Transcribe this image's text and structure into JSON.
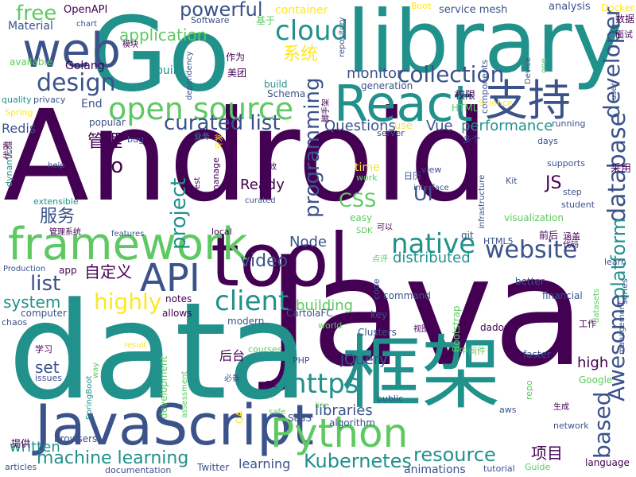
{
  "background": "#ffffff",
  "palette": [
    "#440154",
    "#3b528b",
    "#21918c",
    "#5ec962",
    "#fde725"
  ],
  "words": [
    {
      "text": "Android",
      "color": "#440154"
    },
    {
      "text": "Java",
      "color": "#440154"
    },
    {
      "text": "data",
      "color": "#21918c"
    },
    {
      "text": "框架",
      "color": "#21918c"
    },
    {
      "text": "library",
      "color": "#21918c"
    },
    {
      "text": "Go",
      "color": "#21918c"
    },
    {
      "text": "tool",
      "color": "#440154"
    },
    {
      "text": "JavaScript",
      "color": "#3b528b"
    },
    {
      "text": "React",
      "color": "#21918c"
    },
    {
      "text": "framework",
      "color": "#5ec962"
    },
    {
      "text": "web",
      "color": "#3b528b"
    },
    {
      "text": "Python",
      "color": "#5ec962"
    },
    {
      "text": "open source",
      "color": "#5ec962"
    },
    {
      "text": "支持",
      "color": "#3b528b"
    },
    {
      "text": "API",
      "color": "#3b528b"
    },
    {
      "text": "cloud",
      "color": "#21918c"
    },
    {
      "text": "database",
      "color": "#3b528b"
    },
    {
      "text": "design",
      "color": "#3b528b"
    },
    {
      "text": "collection",
      "color": "#3b528b"
    },
    {
      "text": "curated list",
      "color": "#3b528b"
    },
    {
      "text": "website",
      "color": "#3b528b"
    },
    {
      "text": "native",
      "color": "#21918c"
    },
    {
      "text": "client",
      "color": "#21918c"
    },
    {
      "text": "https",
      "color": "#21918c"
    },
    {
      "text": "powerful",
      "color": "#3b528b"
    },
    {
      "text": "developer",
      "color": "#3b528b"
    },
    {
      "text": "platform",
      "color": "#21918c"
    },
    {
      "text": "programming",
      "color": "#3b528b"
    },
    {
      "text": "based",
      "color": "#3b528b"
    },
    {
      "text": "Awesome",
      "color": "#3b528b"
    },
    {
      "text": "resource",
      "color": "#21918c"
    },
    {
      "text": "machine learning",
      "color": "#21918c"
    },
    {
      "text": "Kubernetes",
      "color": "#21918c"
    },
    {
      "text": "highly",
      "color": "#fde725"
    },
    {
      "text": "project",
      "color": "#21918c"
    },
    {
      "text": "video",
      "color": "#3b528b"
    },
    {
      "text": "list",
      "color": "#3b528b"
    },
    {
      "text": "free",
      "color": "#5ec962"
    },
    {
      "text": "系统",
      "color": "#fde725"
    },
    {
      "text": "application",
      "color": "#5ec962"
    },
    {
      "text": "io",
      "color": "#440154"
    },
    {
      "text": "CSS",
      "color": "#5ec962"
    },
    {
      "text": "UI",
      "color": "#3b528b"
    },
    {
      "text": "JS",
      "color": "#440154"
    },
    {
      "text": "服务",
      "color": "#3b528b"
    },
    {
      "text": "管理",
      "color": "#440154"
    },
    {
      "text": "自定义",
      "color": "#440154"
    },
    {
      "text": "项目",
      "color": "#440154"
    },
    {
      "text": "system",
      "color": "#21918c"
    },
    {
      "text": "set",
      "color": "#3b528b"
    },
    {
      "text": "written",
      "color": "#21918c"
    },
    {
      "text": "performance",
      "color": "#21918c"
    },
    {
      "text": "Vue",
      "color": "#3b528b"
    },
    {
      "text": "Questions",
      "color": "#3b528b"
    },
    {
      "text": "monitor",
      "color": "#3b528b"
    },
    {
      "text": "distributed",
      "color": "#21918c"
    },
    {
      "text": "Node",
      "color": "#3b528b"
    },
    {
      "text": "Ready",
      "color": "#440154"
    },
    {
      "text": "building",
      "color": "#5ec962"
    },
    {
      "text": "jQuery",
      "color": "#3b528b"
    },
    {
      "text": "libraries",
      "color": "#3b528b"
    },
    {
      "text": "learning",
      "color": "#3b528b"
    },
    {
      "text": "animations",
      "color": "#3b528b"
    },
    {
      "text": "high",
      "color": "#440154"
    },
    {
      "text": "后台",
      "color": "#440154"
    },
    {
      "text": "基于",
      "color": "#5ec962"
    },
    {
      "text": "Material",
      "color": "#3b528b"
    },
    {
      "text": "Golang",
      "color": "#440154"
    },
    {
      "text": "OpenAPI",
      "color": "#440154"
    },
    {
      "text": "container",
      "color": "#fde725"
    },
    {
      "text": "service mesh",
      "color": "#3b528b"
    },
    {
      "text": "analysis",
      "color": "#3b528b"
    },
    {
      "text": "Boot",
      "color": "#fde725"
    },
    {
      "text": "Docker",
      "color": "#fde725"
    },
    {
      "text": "数据",
      "color": "#440154"
    },
    {
      "text": "面试",
      "color": "#440154"
    },
    {
      "text": "Redis",
      "color": "#3b528b"
    },
    {
      "text": "End",
      "color": "#3b528b"
    },
    {
      "text": "popular",
      "color": "#3b528b"
    },
    {
      "text": "chaos",
      "color": "#3b528b"
    },
    {
      "text": "computer",
      "color": "#3b528b"
    },
    {
      "text": "allows",
      "color": "#440154"
    },
    {
      "text": "notes",
      "color": "#440154"
    },
    {
      "text": "modern",
      "color": "#3b528b"
    },
    {
      "text": "CartolaFC",
      "color": "#3b528b"
    },
    {
      "text": "world",
      "color": "#5ec962"
    },
    {
      "text": "key",
      "color": "#3b528b"
    },
    {
      "text": "command",
      "color": "#3b528b"
    },
    {
      "text": "financial",
      "color": "#3b528b"
    },
    {
      "text": "better",
      "color": "#3b528b"
    },
    {
      "text": "faster",
      "color": "#3b528b"
    },
    {
      "text": "Google",
      "color": "#5ec962"
    },
    {
      "text": "network",
      "color": "#3b528b"
    },
    {
      "text": "language",
      "color": "#440154"
    },
    {
      "text": "Guide",
      "color": "#5ec962"
    },
    {
      "text": "tutorial",
      "color": "#3b528b"
    },
    {
      "text": "Twitter",
      "color": "#3b528b"
    },
    {
      "text": "documentation",
      "color": "#3b528b"
    },
    {
      "text": "articles",
      "color": "#3b528b"
    },
    {
      "text": "提供",
      "color": "#440154"
    },
    {
      "text": "browsers",
      "color": "#3b528b"
    },
    {
      "text": "SaaS",
      "color": "#3b528b"
    },
    {
      "text": "algorithm",
      "color": "#3b528b"
    },
    {
      "text": "public",
      "color": "#3b528b"
    },
    {
      "text": "Clusters",
      "color": "#3b528b"
    },
    {
      "text": "PHP",
      "color": "#3b528b"
    },
    {
      "text": "RL",
      "color": "#440154"
    },
    {
      "text": "必备",
      "color": "#3b528b"
    },
    {
      "text": "学习",
      "color": "#440154"
    },
    {
      "text": "issues",
      "color": "#3b528b"
    },
    {
      "text": "result",
      "color": "#fde725"
    },
    {
      "text": "courses",
      "color": "#5ec962"
    },
    {
      "text": "dados",
      "color": "#440154"
    },
    {
      "text": "视图",
      "color": "#440154"
    },
    {
      "text": "中间件",
      "color": "#5ec962"
    },
    {
      "text": "工作",
      "color": "#440154"
    },
    {
      "text": "生成",
      "color": "#440154"
    },
    {
      "text": "aws",
      "color": "#3b528b"
    },
    {
      "text": "safe",
      "color": "#5ec962"
    },
    {
      "text": "line",
      "color": "#5ec962"
    },
    {
      "text": "Production",
      "color": "#3b528b"
    },
    {
      "text": "app",
      "color": "#440154"
    },
    {
      "text": "local",
      "color": "#440154"
    },
    {
      "text": "features",
      "color": "#3b528b"
    },
    {
      "text": "管理系统",
      "color": "#440154"
    },
    {
      "text": "extensible",
      "color": "#21918c"
    },
    {
      "text": "help",
      "color": "#3b528b"
    },
    {
      "text": "依存",
      "color": "#440154"
    },
    {
      "text": "curated",
      "color": "#3b528b"
    },
    {
      "text": "rest",
      "color": "#440154"
    },
    {
      "text": "高效",
      "color": "#440154"
    },
    {
      "text": "easy",
      "color": "#5ec962"
    },
    {
      "text": "time",
      "color": "#fde725"
    },
    {
      "text": "work",
      "color": "#5ec962"
    },
    {
      "text": "日历",
      "color": "#3b528b"
    },
    {
      "text": "view",
      "color": "#3b528b"
    },
    {
      "text": "SDK",
      "color": "#5ec962"
    },
    {
      "text": "可以",
      "color": "#440154"
    },
    {
      "text": "点评",
      "color": "#5ec962"
    },
    {
      "text": "HTML5",
      "color": "#3b528b"
    },
    {
      "text": "前后",
      "color": "#440154"
    },
    {
      "text": "涵盖",
      "color": "#440154"
    },
    {
      "text": "代码",
      "color": "#440154"
    },
    {
      "text": "learn",
      "color": "#3b528b"
    },
    {
      "text": "采用",
      "color": "#440154"
    },
    {
      "text": "Kit",
      "color": "#3b528b"
    },
    {
      "text": "step",
      "color": "#3b528b"
    },
    {
      "text": "student",
      "color": "#3b528b"
    },
    {
      "text": "supports",
      "color": "#3b528b"
    },
    {
      "text": "days",
      "color": "#3b528b"
    },
    {
      "text": "running",
      "color": "#3b528b"
    },
    {
      "text": "多个",
      "color": "#3b528b"
    },
    {
      "text": "server",
      "color": "#3b528b"
    },
    {
      "text": "use",
      "color": "#fde725"
    },
    {
      "text": "HTML",
      "color": "#5ec962"
    },
    {
      "text": "权限",
      "color": "#440154"
    },
    {
      "text": "generation",
      "color": "#3b528b"
    },
    {
      "text": "build",
      "color": "#21918c"
    },
    {
      "text": "Schema",
      "color": "#3b528b"
    },
    {
      "text": "美团",
      "color": "#440154"
    },
    {
      "text": "作为",
      "color": "#440154"
    },
    {
      "text": "built",
      "color": "#21918c"
    },
    {
      "text": "模块",
      "color": "#440154"
    },
    {
      "text": "Software",
      "color": "#3b528b"
    },
    {
      "text": "chart",
      "color": "#3b528b"
    },
    {
      "text": "available",
      "color": "#5ec962"
    },
    {
      "text": "quality",
      "color": "#21918c"
    },
    {
      "text": "privacy",
      "color": "#3b528b"
    },
    {
      "text": "Spring",
      "color": "#fde725"
    },
    {
      "text": "优雅",
      "color": "#440154"
    },
    {
      "text": "dynamic",
      "color": "#21918c"
    },
    {
      "text": "dependency",
      "color": "#3b528b"
    },
    {
      "text": "bug",
      "color": "#3b528b"
    },
    {
      "text": "业务",
      "color": "#21918c"
    },
    {
      "text": "开发",
      "color": "#fde725"
    },
    {
      "text": "SpringBoot",
      "color": "#21918c"
    },
    {
      "text": "way",
      "color": "#5ec962"
    },
    {
      "text": "development",
      "color": "#5ec962"
    },
    {
      "text": "assessment",
      "color": "#5ec962"
    },
    {
      "text": "QA",
      "color": "#fde725"
    },
    {
      "text": "interface",
      "color": "#3b528b"
    },
    {
      "text": "code",
      "color": "#3b528b"
    },
    {
      "text": "Bootstrap",
      "color": "#5ec962"
    },
    {
      "text": "repo",
      "color": "#5ec962"
    },
    {
      "text": "datasets",
      "color": "#5ec962"
    },
    {
      "text": "management",
      "color": "#3b528b"
    },
    {
      "text": "series",
      "color": "#3b528b"
    },
    {
      "text": "infrastructure",
      "color": "#3b528b"
    },
    {
      "text": "visualization",
      "color": "#5ec962"
    },
    {
      "text": "one",
      "color": "#5ec962"
    },
    {
      "text": "Device",
      "color": "#3b528b"
    },
    {
      "text": "user",
      "color": "#3b528b"
    },
    {
      "text": "components",
      "color": "#3b528b"
    },
    {
      "text": "Science",
      "color": "#fde725"
    },
    {
      "text": "脚手架",
      "color": "#440154"
    },
    {
      "text": "repository",
      "color": "#3b528b"
    },
    {
      "text": "git",
      "color": "#3b528b"
    },
    {
      "text": "manage",
      "color": "#440154"
    },
    {
      "text": "lightweight",
      "color": "#3b528b"
    }
  ]
}
